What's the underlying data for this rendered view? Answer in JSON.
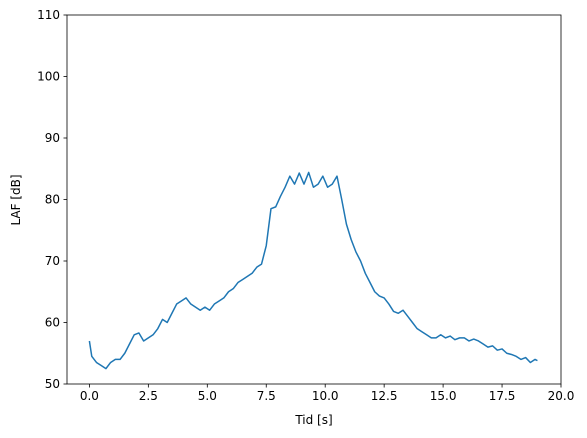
{
  "chart_data": {
    "type": "line",
    "xlabel": "Tid [s]",
    "ylabel": "LAF [dB]",
    "x": [
      0,
      0.1,
      0.3,
      0.5,
      0.7,
      0.9,
      1.1,
      1.3,
      1.5,
      1.7,
      1.9,
      2.1,
      2.3,
      2.5,
      2.7,
      2.9,
      3.1,
      3.3,
      3.5,
      3.7,
      3.9,
      4.1,
      4.3,
      4.5,
      4.7,
      4.9,
      5.1,
      5.3,
      5.5,
      5.7,
      5.9,
      6.1,
      6.3,
      6.5,
      6.7,
      6.9,
      7.1,
      7.3,
      7.5,
      7.7,
      7.9,
      8.1,
      8.3,
      8.5,
      8.7,
      8.9,
      9.1,
      9.3,
      9.5,
      9.7,
      9.9,
      10.1,
      10.3,
      10.5,
      10.7,
      10.9,
      11.1,
      11.3,
      11.5,
      11.7,
      11.9,
      12.1,
      12.3,
      12.5,
      12.7,
      12.9,
      13.1,
      13.3,
      13.5,
      13.7,
      13.9,
      14.1,
      14.3,
      14.5,
      14.7,
      14.9,
      15.1,
      15.3,
      15.5,
      15.7,
      15.9,
      16.1,
      16.3,
      16.5,
      16.7,
      16.9,
      17.1,
      17.3,
      17.5,
      17.7,
      17.9,
      18.1,
      18.3,
      18.5,
      18.7,
      18.9,
      19.0
    ],
    "series": [
      {
        "color": "#1f77b4",
        "values": [
          57,
          54.5,
          53.5,
          53,
          52.5,
          53.5,
          54,
          54,
          55,
          56.5,
          58,
          58.3,
          57,
          57.5,
          58,
          59,
          60.5,
          60,
          61.5,
          63,
          63.5,
          64,
          63,
          62.5,
          62,
          62.5,
          62,
          63,
          63.5,
          64,
          65,
          65.5,
          66.5,
          67,
          67.5,
          68,
          69,
          69.5,
          72.5,
          78.5,
          78.8,
          80.5,
          82,
          83.8,
          82.5,
          84.3,
          82.5,
          84.4,
          82,
          82.5,
          83.8,
          82,
          82.5,
          83.8,
          80,
          76,
          73.5,
          71.5,
          70,
          68,
          66.5,
          65,
          64.3,
          64,
          63,
          61.8,
          61.5,
          62,
          61,
          60,
          59,
          58.5,
          58,
          57.5,
          57.5,
          58,
          57.5,
          57.8,
          57.2,
          57.5,
          57.5,
          57,
          57.3,
          57,
          56.5,
          56,
          56.2,
          55.5,
          55.7,
          55,
          54.8,
          54.5,
          54,
          54.3,
          53.5,
          54,
          53.8
        ]
      }
    ],
    "xlim": [
      -0.95,
      20
    ],
    "ylim": [
      50,
      110
    ],
    "xticks": [
      {
        "value": 0,
        "label": "0.0"
      },
      {
        "value": 2.5,
        "label": "2.5"
      },
      {
        "value": 5,
        "label": "5.0"
      },
      {
        "value": 7.5,
        "label": "7.5"
      },
      {
        "value": 10,
        "label": "10.0"
      },
      {
        "value": 12.5,
        "label": "12.5"
      },
      {
        "value": 15,
        "label": "15.0"
      },
      {
        "value": 17.5,
        "label": "17.5"
      },
      {
        "value": 20,
        "label": "20.0"
      }
    ],
    "yticks": [
      50,
      60,
      70,
      80,
      90,
      100,
      110
    ]
  }
}
